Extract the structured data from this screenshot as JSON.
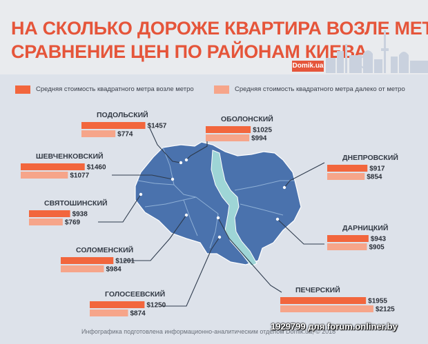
{
  "header": {
    "title_line1": "НА СКОЛЬКО ДОРОЖЕ КВАРТИРА ВОЗЛЕ МЕТРО:",
    "title_line2": "СРАВНЕНИЕ ЦЕН ПО РАЙОНАМ КИЕВА",
    "brand": "Domik.ua"
  },
  "colors": {
    "near": "#f2663d",
    "far": "#f6a58a",
    "map": "#4a72ad",
    "river": "#9ed5d6",
    "accent": "#e5553a"
  },
  "legend": [
    {
      "label": "Средняя стоимость квадратного метра возле метро"
    },
    {
      "label": "Средняя стоимость квадратного метра далеко от метро"
    }
  ],
  "chart_data": {
    "type": "bar",
    "title": "НА СКОЛЬКО ДОРОЖЕ КВАРТИРА ВОЗЛЕ МЕТРО: СРАВНЕНИЕ ЦЕН ПО РАЙОНАМ КИЕВА",
    "categories": [
      "ПОДОЛЬСКИЙ",
      "ОБОЛОНСКИЙ",
      "ШЕВЧЕНКОВСКИЙ",
      "ДНЕПРОВСКИЙ",
      "СВЯТОШИНСКИЙ",
      "ДАРНИЦКИЙ",
      "СОЛОМЕНСКИЙ",
      "ГОЛОСЕЕВСКИЙ",
      "ПЕЧЕРСКИЙ"
    ],
    "series": [
      {
        "name": "Средняя стоимость квадратного метра возле метро",
        "values": [
          1457,
          1025,
          1460,
          917,
          938,
          943,
          1201,
          1250,
          1955
        ],
        "labels": [
          "$1457",
          "$1025",
          "$1460",
          "$917",
          "$938",
          "$943",
          "$1201",
          "$1250",
          "$1955"
        ]
      },
      {
        "name": "Средняя стоимость квадратного метра далеко от метро",
        "values": [
          774,
          994,
          1077,
          854,
          769,
          905,
          984,
          874,
          2125
        ],
        "labels": [
          "$774",
          "$994",
          "$1077",
          "$854",
          "$769",
          "$905",
          "$984",
          "$874",
          "$2125"
        ]
      }
    ],
    "legend_position": "top"
  },
  "footnote": "Инфографика подготовлена информационно-аналитическим отделом Domik.ua, © 2018",
  "watermark": "1929799 для forum.onliner.by"
}
